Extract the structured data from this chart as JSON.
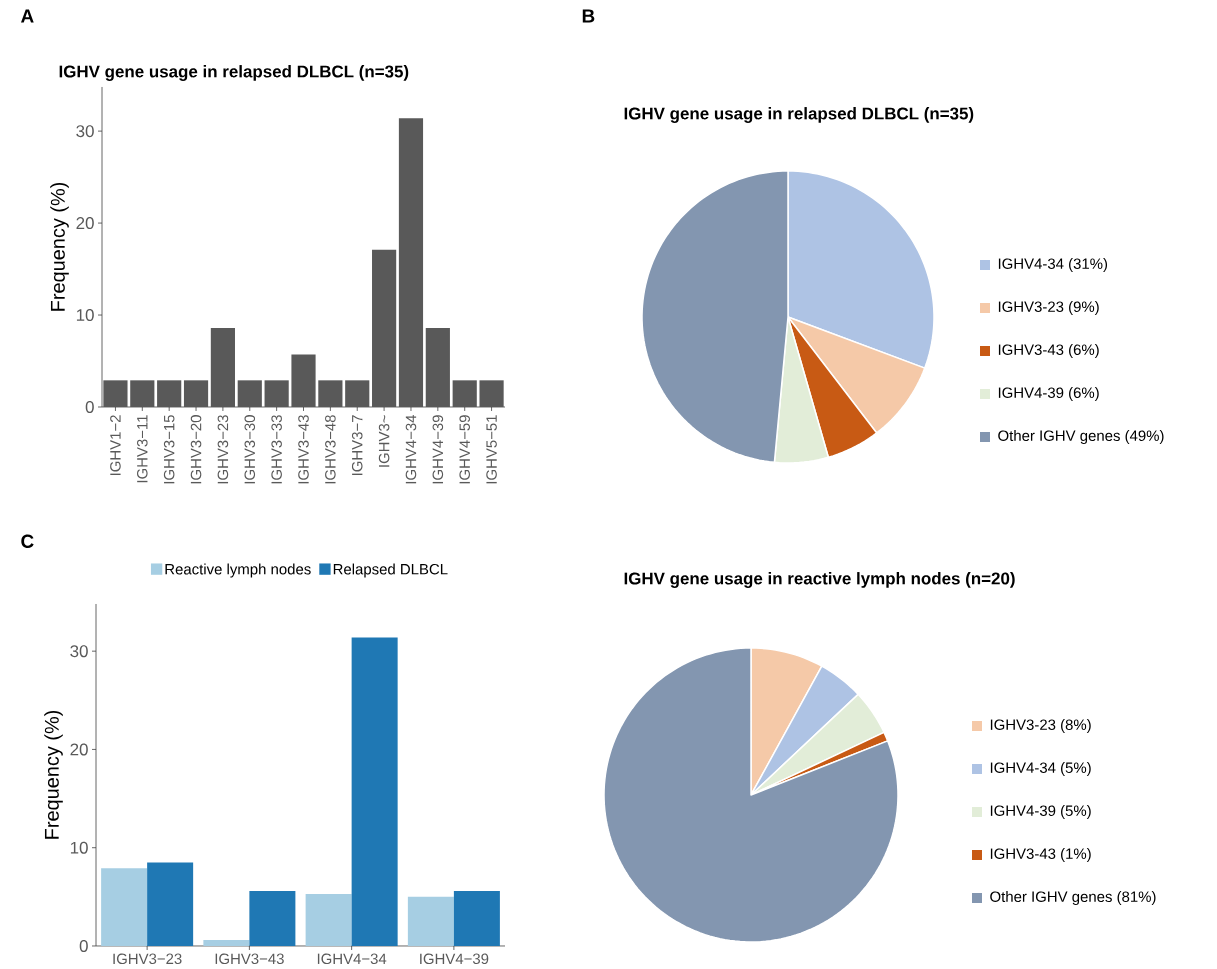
{
  "chart_data": [
    {
      "type": "bar",
      "title": "IGHV gene usage in relapsed DLBCL (n=35)",
      "ylabel": "Frequency (%)",
      "annotations": [
        "A"
      ],
      "categories": [
        "IGHV1−2",
        "IGHV3−11",
        "IGHV3−15",
        "IGHV3−20",
        "IGHV3−23",
        "IGHV3−30",
        "IGHV3−33",
        "IGHV3−43",
        "IGHV3−48",
        "IGHV3−7",
        "IGHV3~",
        "IGHV4−34",
        "IGHV4−39",
        "IGHV4−59",
        "IGHV5−51"
      ],
      "values": [
        2.9,
        2.9,
        2.9,
        2.9,
        8.6,
        2.9,
        2.9,
        5.7,
        2.9,
        2.9,
        17.1,
        31.4,
        8.6,
        2.9,
        2.9
      ],
      "color": "#595959",
      "ylim": [
        0,
        34.8
      ],
      "yticks": [
        0,
        10,
        20,
        30
      ]
    },
    {
      "type": "pie",
      "title": "IGHV gene usage in relapsed DLBCL (n=35)",
      "annotations": [
        "B"
      ],
      "categories": [
        "IGHV4-34 (31%)",
        "IGHV3-23 (9%)",
        "IGHV3-43 (6%)",
        "IGHV4-39 (6%)",
        "Other IGHV genes (49%)"
      ],
      "values": [
        31,
        9,
        6,
        6,
        49
      ],
      "colors": [
        "#aec3e4",
        "#f5c9a8",
        "#c85a14",
        "#e2edd8",
        "#8396b0"
      ],
      "legend": "right"
    },
    {
      "type": "bar",
      "ylabel": "Frequency (%)",
      "annotations": [
        "C"
      ],
      "categories": [
        "IGHV3−23",
        "IGHV3−43",
        "IGHV4−34",
        "IGHV4−39"
      ],
      "series": [
        {
          "name": "Reactive lymph nodes",
          "color": "#a6cee3",
          "values": [
            7.9,
            0.6,
            5.3,
            5.0
          ]
        },
        {
          "name": "Relapsed DLBCL",
          "color": "#1f78b4",
          "values": [
            8.5,
            5.6,
            31.4,
            5.6
          ]
        }
      ],
      "ylim": [
        0,
        34.8
      ],
      "yticks": [
        0,
        10,
        20,
        30
      ],
      "legend": "top"
    },
    {
      "type": "pie",
      "title": "IGHV gene usage in reactive lymph nodes (n=20)",
      "categories": [
        "IGHV3-23 (8%)",
        "IGHV4-34 (5%)",
        "IGHV4-39 (5%)",
        "IGHV3-43 (1%)",
        "Other IGHV genes  (81%)"
      ],
      "values": [
        8,
        5,
        5,
        1,
        81
      ],
      "colors": [
        "#f5c9a8",
        "#aec3e4",
        "#e2edd8",
        "#c85a14",
        "#8396b0"
      ],
      "legend": "right"
    }
  ]
}
